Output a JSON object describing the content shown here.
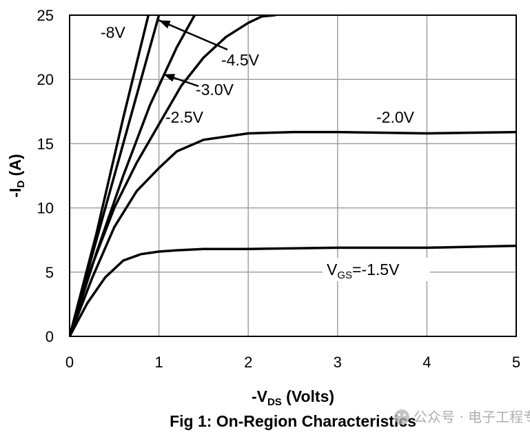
{
  "chart_data": {
    "type": "line",
    "xlabel": "-V",
    "xlabel_sub": "DS",
    "xlabel_tail": " (Volts)",
    "ylabel": "-I",
    "ylabel_sub": "D",
    "ylabel_tail": " (A)",
    "xlim": [
      0,
      5
    ],
    "ylim": [
      0,
      25
    ],
    "x_ticks": [
      "0",
      "1",
      "2",
      "3",
      "4",
      "5"
    ],
    "y_ticks": [
      "0",
      "5",
      "10",
      "15",
      "20",
      "25"
    ],
    "grid": true,
    "series": [
      {
        "name": "-8V",
        "x": [
          0,
          0.3,
          0.6,
          0.9
        ],
        "y": [
          0,
          8,
          17,
          25.5
        ]
      },
      {
        "name": "-4.5V",
        "x": [
          0,
          0.3,
          0.6,
          0.9,
          1.0
        ],
        "y": [
          0,
          7.5,
          15,
          22.5,
          25
        ]
      },
      {
        "name": "-3.0V",
        "x": [
          0,
          0.3,
          0.6,
          0.9,
          1.2,
          1.4
        ],
        "y": [
          0,
          6.5,
          12.5,
          18,
          22.5,
          25
        ]
      },
      {
        "name": "-2.5V",
        "x": [
          0,
          0.25,
          0.5,
          0.75,
          1.0,
          1.25,
          1.5,
          1.75,
          2.0,
          2.15,
          2.3
        ],
        "y": [
          0,
          5.5,
          10,
          13.5,
          16.5,
          19.5,
          21.7,
          23.3,
          24.4,
          24.9,
          25
        ]
      },
      {
        "name": "-2.0V",
        "x": [
          0,
          0.25,
          0.5,
          0.75,
          1.0,
          1.2,
          1.5,
          2.0,
          2.5,
          3.0,
          4.0,
          5.0
        ],
        "y": [
          0,
          4.5,
          8.5,
          11.3,
          13.1,
          14.4,
          15.3,
          15.8,
          15.9,
          15.9,
          15.8,
          15.9
        ]
      },
      {
        "name": "V_GS=-1.5V",
        "x": [
          0,
          0.2,
          0.4,
          0.6,
          0.8,
          1.0,
          1.2,
          1.5,
          2.0,
          3.0,
          4.0,
          5.0
        ],
        "y": [
          0,
          2.6,
          4.6,
          5.9,
          6.4,
          6.6,
          6.7,
          6.8,
          6.8,
          6.9,
          6.9,
          7.05
        ]
      }
    ],
    "annotations": [
      {
        "text": "-8V"
      },
      {
        "text": "-4.5V",
        "arrow_to": [
          1.0,
          24.6
        ]
      },
      {
        "text": "-3.0V",
        "arrow_to": [
          1.05,
          20.4
        ]
      },
      {
        "text": "-2.5V"
      },
      {
        "text": "-2.0V"
      },
      {
        "text": "V",
        "sub": "GS",
        "tail": "=-1.5V"
      }
    ],
    "caption": "Fig 1: On-Region Characteristics"
  },
  "watermark": {
    "text": "公众号 · 电子工程专辑",
    "icon": "wechat-logo-icon"
  }
}
